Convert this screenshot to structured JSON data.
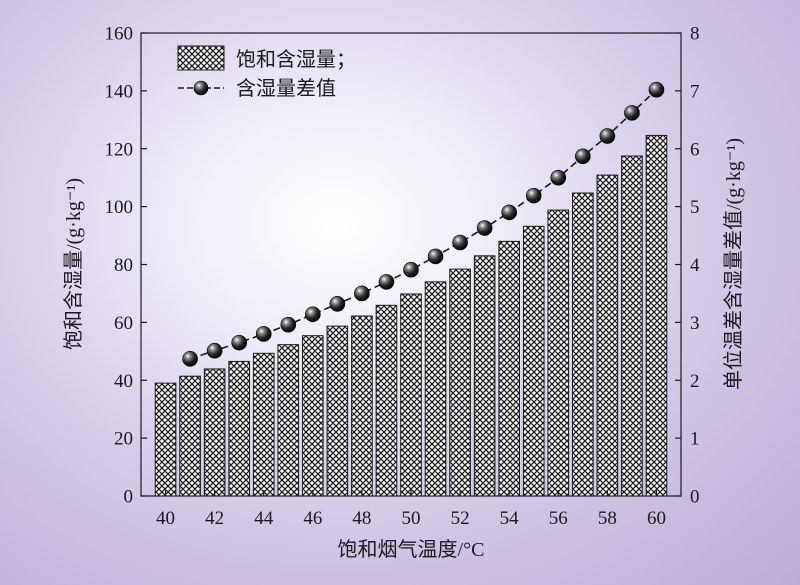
{
  "chart_data": {
    "type": "bar+line",
    "x": [
      40,
      41,
      42,
      43,
      44,
      45,
      46,
      47,
      48,
      49,
      50,
      51,
      52,
      53,
      54,
      55,
      56,
      57,
      58,
      59,
      60
    ],
    "x_tick_labels": [
      "40",
      "42",
      "44",
      "46",
      "48",
      "50",
      "52",
      "54",
      "56",
      "58",
      "60"
    ],
    "xlabel": "饱和烟气温度/°C",
    "series": [
      {
        "name": "饱和含湿量；",
        "type": "bar",
        "axis": "left",
        "x": [
          40,
          41,
          42,
          43,
          44,
          45,
          46,
          47,
          48,
          49,
          50,
          51,
          52,
          53,
          54,
          55,
          56,
          57,
          58,
          59,
          60
        ],
        "values": [
          39.0,
          41.4,
          43.9,
          46.5,
          49.3,
          52.3,
          55.4,
          58.7,
          62.2,
          65.9,
          69.8,
          74.0,
          78.4,
          83.0,
          88.0,
          93.2,
          98.8,
          104.7,
          110.9,
          117.5,
          124.6
        ]
      },
      {
        "name": "含湿量差值",
        "type": "line",
        "axis": "right",
        "x": [
          41,
          42,
          43,
          44,
          45,
          46,
          47,
          48,
          49,
          50,
          51,
          52,
          53,
          54,
          55,
          56,
          57,
          58,
          59,
          60
        ],
        "values": [
          2.37,
          2.51,
          2.65,
          2.8,
          2.96,
          3.14,
          3.32,
          3.5,
          3.7,
          3.91,
          4.14,
          4.38,
          4.63,
          4.9,
          5.19,
          5.5,
          5.87,
          6.22,
          6.62,
          7.02
        ]
      }
    ],
    "y_left": {
      "label": "饱和含湿量/(g·kg⁻¹)",
      "range": [
        0,
        160
      ],
      "ticks": [
        0,
        20,
        40,
        60,
        80,
        100,
        120,
        140,
        160
      ]
    },
    "y_right": {
      "label": "单位温差含湿量差值/(g·kg⁻¹)",
      "range": [
        0,
        8
      ],
      "ticks": [
        0,
        1,
        2,
        3,
        4,
        5,
        6,
        7,
        8
      ]
    },
    "legend_position": "top-left",
    "grid": false
  }
}
